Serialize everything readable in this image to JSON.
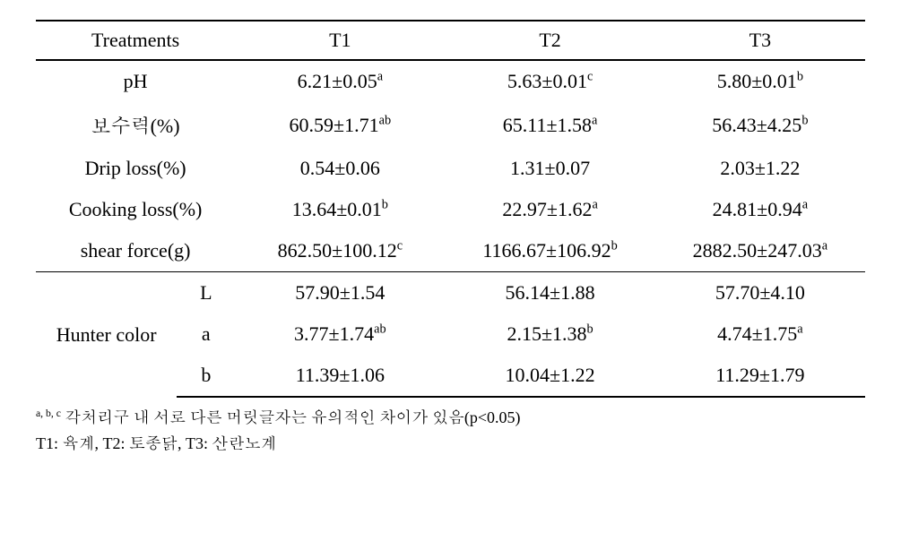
{
  "table": {
    "type": "table",
    "columns": [
      "Treatments",
      "T1",
      "T2",
      "T3"
    ],
    "header_fontsize": 22,
    "body_fontsize": 22,
    "footnote_fontsize": 18,
    "border_top_width": 2,
    "border_bottom_width": 2,
    "header_underline_style": "double",
    "text_color": "#000000",
    "background_color": "#ffffff",
    "border_color": "#000000",
    "rows": [
      {
        "label": "pH",
        "T1": {
          "value": "6.21±0.05",
          "sup": "a"
        },
        "T2": {
          "value": "5.63±0.01",
          "sup": "c"
        },
        "T3": {
          "value": "5.80±0.01",
          "sup": "b"
        }
      },
      {
        "label": "보수력(%)",
        "T1": {
          "value": "60.59±1.71",
          "sup": "ab"
        },
        "T2": {
          "value": "65.11±1.58",
          "sup": "a"
        },
        "T3": {
          "value": "56.43±4.25",
          "sup": "b"
        }
      },
      {
        "label": "Drip loss(%)",
        "T1": {
          "value": "0.54±0.06",
          "sup": ""
        },
        "T2": {
          "value": "1.31±0.07",
          "sup": ""
        },
        "T3": {
          "value": "2.03±1.22",
          "sup": ""
        }
      },
      {
        "label": "Cooking loss(%)",
        "T1": {
          "value": "13.64±0.01",
          "sup": "b"
        },
        "T2": {
          "value": "22.97±1.62",
          "sup": "a"
        },
        "T3": {
          "value": "24.81±0.94",
          "sup": "a"
        }
      },
      {
        "label": "shear force(g)",
        "T1": {
          "value": "862.50±100.12",
          "sup": "c"
        },
        "T2": {
          "value": "1166.67±106.92",
          "sup": "b"
        },
        "T3": {
          "value": "2882.50±247.03",
          "sup": "a"
        }
      }
    ],
    "hunter": {
      "label": "Hunter color",
      "sub": [
        "L",
        "a",
        "b"
      ],
      "L": {
        "T1": {
          "value": "57.90±1.54",
          "sup": ""
        },
        "T2": {
          "value": "56.14±1.88",
          "sup": ""
        },
        "T3": {
          "value": "57.70±4.10",
          "sup": ""
        }
      },
      "a": {
        "T1": {
          "value": "3.77±1.74",
          "sup": "ab"
        },
        "T2": {
          "value": "2.15±1.38",
          "sup": "b"
        },
        "T3": {
          "value": "4.74±1.75",
          "sup": "a"
        }
      },
      "b": {
        "T1": {
          "value": "11.39±1.06",
          "sup": ""
        },
        "T2": {
          "value": "10.04±1.22",
          "sup": ""
        },
        "T3": {
          "value": "11.29±1.79",
          "sup": ""
        }
      }
    }
  },
  "footnotes": {
    "line1_sup": "a, b, c",
    "line1_text": " 각처리구 내 서로 다른 머릿글자는 유의적인 차이가 있음(p<0.05)",
    "line2": "T1: 육계, T2: 토종닭, T3: 산란노계"
  }
}
